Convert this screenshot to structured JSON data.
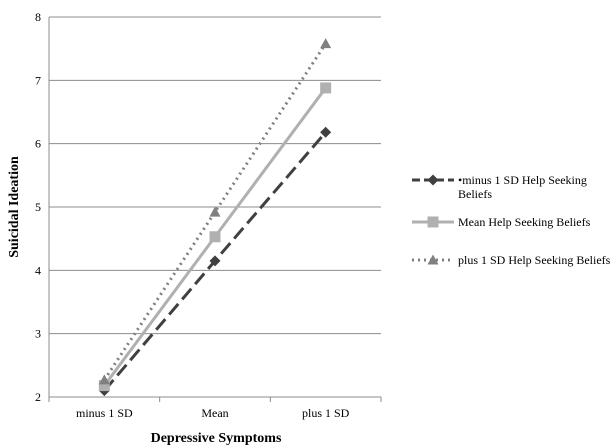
{
  "chart_data": {
    "type": "line",
    "categories": [
      "minus 1 SD",
      "Mean",
      "plus 1 SD"
    ],
    "series": [
      {
        "name": "minus 1 SD Help Seeking Beliefs",
        "values": [
          2.1,
          4.15,
          6.18
        ],
        "color": "#404040",
        "dash": "dashed",
        "marker": "diamond"
      },
      {
        "name": "Mean Help Seeking Beliefs",
        "values": [
          2.18,
          4.53,
          6.88
        ],
        "color": "#b0b0b0",
        "dash": "solid",
        "marker": "square"
      },
      {
        "name": "plus 1 SD Help Seeking Beliefs",
        "values": [
          2.27,
          4.92,
          7.58
        ],
        "color": "#808080",
        "dash": "dotted",
        "marker": "triangle"
      }
    ],
    "xlabel": "Depressive Symptoms",
    "ylabel": "Suicidal Ideation",
    "ylim": [
      2,
      8
    ],
    "yticks": [
      2,
      3,
      4,
      5,
      6,
      7,
      8
    ],
    "grid": "horizontal",
    "legend_position": "right"
  },
  "legend": {
    "items": [
      {
        "label": "•minus 1 SD Help Seeking Beliefs"
      },
      {
        "label": "Mean Help Seeking Beliefs"
      },
      {
        "label": "plus 1 SD Help Seeking Beliefs"
      }
    ]
  }
}
